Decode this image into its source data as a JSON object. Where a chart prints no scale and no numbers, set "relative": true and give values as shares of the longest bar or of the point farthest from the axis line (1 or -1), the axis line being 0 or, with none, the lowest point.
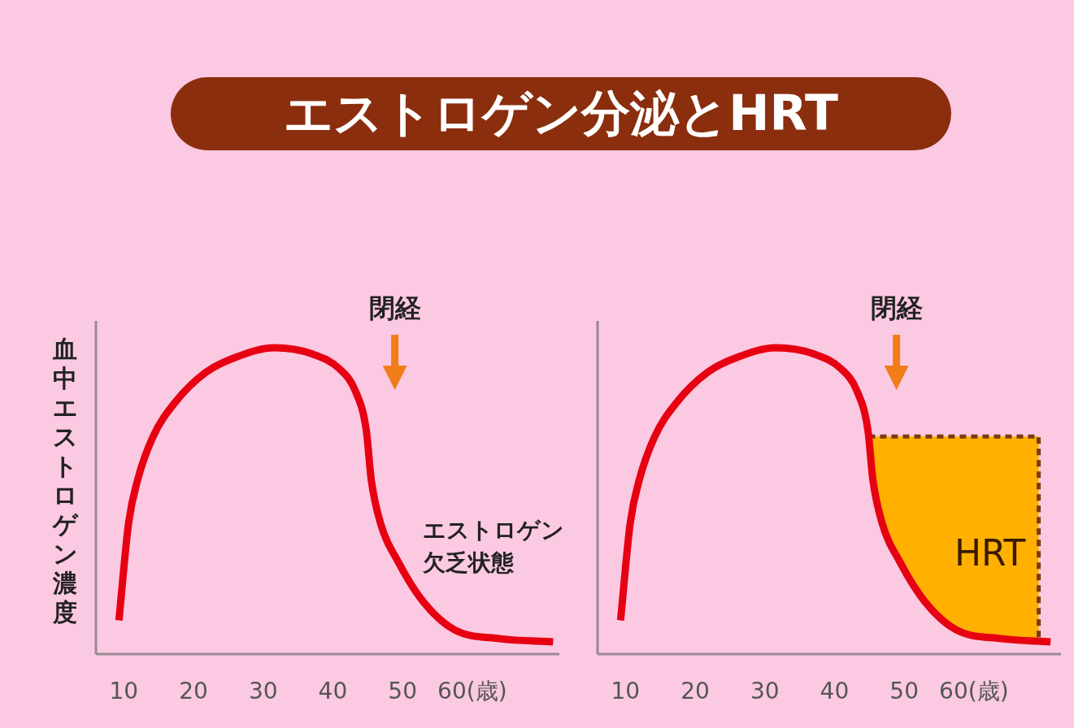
{
  "chart_data": [
    {
      "type": "line",
      "title": "エストロゲン分泌とHRT",
      "ylabel": "血中エストロゲン濃度",
      "relative": true,
      "xlim": [
        6,
        72.5
      ],
      "xticks": [
        10,
        20,
        30,
        40,
        50,
        {
          "value": 60,
          "label": "60(歳)"
        }
      ],
      "series": [
        {
          "color": "#e60012",
          "x": [
            9.3,
            10.7,
            12,
            14.2,
            17.3,
            21.8,
            26.2,
            31.6,
            37,
            41,
            43.2,
            44.8,
            45.5,
            46.8,
            49.4,
            53,
            57.4,
            64,
            71.6
          ],
          "values": [
            0.11,
            0.43,
            0.57,
            0.71,
            0.82,
            0.92,
            0.97,
            1.0,
            0.98,
            0.93,
            0.86,
            0.73,
            0.57,
            0.43,
            0.3,
            0.17,
            0.08,
            0.05,
            0.04
          ]
        }
      ],
      "annotations": [
        "閉経",
        "エストロゲン",
        "欠乏状態"
      ]
    },
    {
      "type": "line",
      "relative": true,
      "xlim": [
        6,
        72.5
      ],
      "xticks": [
        10,
        20,
        30,
        40,
        50,
        {
          "value": 60,
          "label": "60(歳)"
        }
      ],
      "series": [
        {
          "type": "area",
          "name": "HRT",
          "color": "#ffb000",
          "line_style": "dashed",
          "x": [
            44.9,
            45.5,
            46.8,
            49.4,
            53,
            57.4,
            64,
            69.3
          ],
          "values": [
            0.71,
            0.71,
            0.71,
            0.71,
            0.71,
            0.71,
            0.71,
            0.71
          ]
        },
        {
          "color": "#e60012",
          "x": [
            9.3,
            10.7,
            12,
            14.2,
            17.3,
            21.8,
            26.2,
            31.6,
            37,
            41,
            43.2,
            44.8,
            45.5,
            46.8,
            49.4,
            53,
            57.4,
            64,
            71
          ],
          "values": [
            0.11,
            0.43,
            0.57,
            0.71,
            0.82,
            0.92,
            0.97,
            1.0,
            0.98,
            0.93,
            0.86,
            0.73,
            0.57,
            0.43,
            0.3,
            0.17,
            0.08,
            0.05,
            0.04
          ]
        }
      ],
      "annotations": [
        "閉経"
      ]
    }
  ]
}
